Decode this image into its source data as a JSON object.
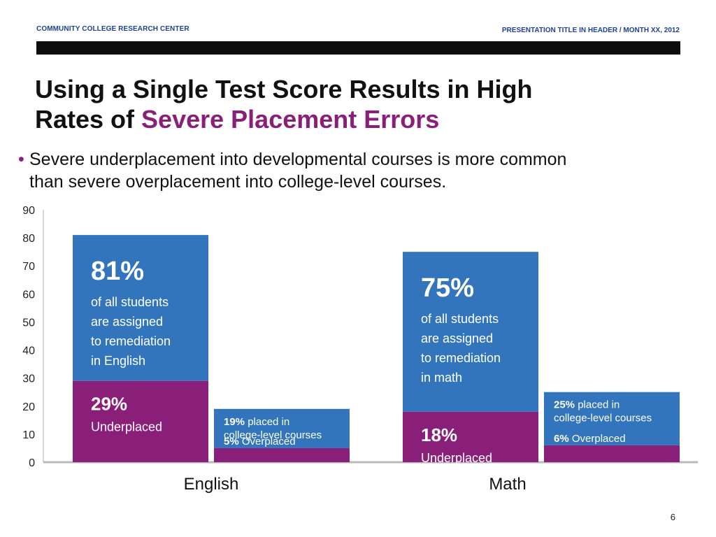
{
  "header": {
    "left": "COMMUNITY COLLEGE RESEARCH CENTER",
    "right": "PRESENTATION TITLE IN HEADER / MONTH XX, 2012"
  },
  "title": {
    "line1": "Using a Single Test Score Results in High",
    "line2_prefix": "Rates of ",
    "line2_highlight": "Severe Placement Errors"
  },
  "bullet": {
    "line1": "Severe underplacement into developmental courses is more common",
    "line2": "than severe overplacement into college-level courses."
  },
  "page_number": "6",
  "colors": {
    "blue": "#3375bd",
    "purple": "#8a1f7a",
    "accent": "#8a1f7a",
    "header_text": "#1f3f9a"
  },
  "chart_data": {
    "type": "bar",
    "stacked": true,
    "categories": [
      "English",
      "Math"
    ],
    "ylim": [
      0,
      90
    ],
    "yticks": [
      0,
      10,
      20,
      30,
      40,
      50,
      60,
      70,
      80,
      90
    ],
    "groups": [
      {
        "category": "English",
        "bars": [
          {
            "name": "assigned-to-remediation",
            "segments": [
              {
                "name": "underplaced",
                "value": 29,
                "color": "#8a1f7a",
                "pct": "29%",
                "lines": [
                  "Underplaced"
                ]
              },
              {
                "name": "remainder",
                "value": 52,
                "color": "#3375bd",
                "pct": "81%",
                "lines": [
                  "of all students",
                  "are assigned",
                  "to remediation",
                  "in English"
                ]
              }
            ],
            "total": 81
          },
          {
            "name": "placed-college-level",
            "segments": [
              {
                "name": "overplaced",
                "value": 5,
                "color": "#8a1f7a",
                "pct": "5%",
                "lines": [
                  "Overplaced"
                ]
              },
              {
                "name": "remainder",
                "value": 14,
                "color": "#3375bd",
                "pct": "19%",
                "lines": [
                  "placed in",
                  "college-level courses"
                ]
              }
            ],
            "total": 19
          }
        ]
      },
      {
        "category": "Math",
        "bars": [
          {
            "name": "assigned-to-remediation",
            "segments": [
              {
                "name": "underplaced",
                "value": 18,
                "color": "#8a1f7a",
                "pct": "18%",
                "lines": [
                  "Underplaced"
                ]
              },
              {
                "name": "remainder",
                "value": 57,
                "color": "#3375bd",
                "pct": "75%",
                "lines": [
                  "of all students",
                  "are assigned",
                  "to remediation",
                  "in math"
                ]
              }
            ],
            "total": 75
          },
          {
            "name": "placed-college-level",
            "segments": [
              {
                "name": "overplaced",
                "value": 6,
                "color": "#8a1f7a",
                "pct": "6%",
                "lines": [
                  "Overplaced"
                ]
              },
              {
                "name": "remainder",
                "value": 19,
                "color": "#3375bd",
                "pct": "25%",
                "lines": [
                  "placed in",
                  "college-level courses"
                ]
              }
            ],
            "total": 25
          }
        ]
      }
    ]
  }
}
